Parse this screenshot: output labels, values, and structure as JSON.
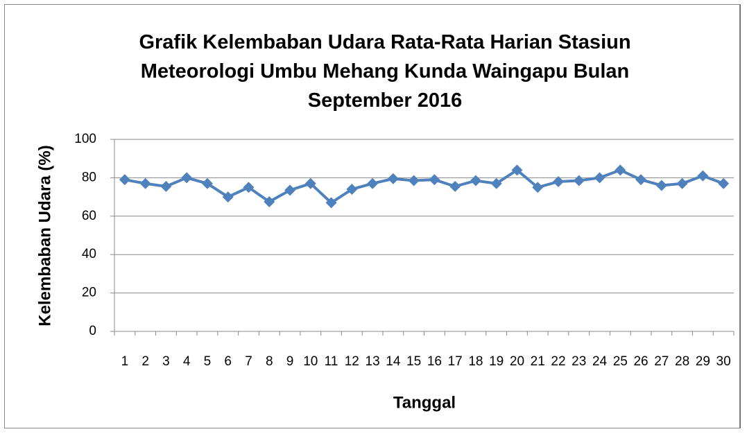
{
  "chart_data": {
    "type": "line",
    "title": "Grafik Kelembaban Udara Rata-Rata Harian Stasiun Meteorologi Umbu Mehang Kunda Waingapu Bulan September 2016",
    "x_label": "Tanggal",
    "y_label": "Kelembaban Udara (%)",
    "categories": [
      "1",
      "2",
      "3",
      "4",
      "5",
      "6",
      "7",
      "8",
      "9",
      "10",
      "11",
      "12",
      "13",
      "14",
      "15",
      "16",
      "17",
      "18",
      "19",
      "20",
      "21",
      "22",
      "23",
      "24",
      "25",
      "26",
      "27",
      "28",
      "29",
      "30"
    ],
    "series": [
      {
        "name": "Kelembaban Udara",
        "color": "#4f81bd",
        "values": [
          79,
          77,
          75.5,
          80,
          77,
          70,
          75,
          67.5,
          73.5,
          77,
          67,
          74,
          77,
          79.5,
          78.5,
          79,
          75.5,
          78.5,
          77,
          84,
          75,
          78,
          78.5,
          80,
          84,
          79,
          76,
          77,
          81,
          77
        ]
      }
    ],
    "ylim": [
      0,
      100
    ],
    "yticks": [
      0,
      20,
      40,
      60,
      80,
      100
    ],
    "grid": true
  }
}
